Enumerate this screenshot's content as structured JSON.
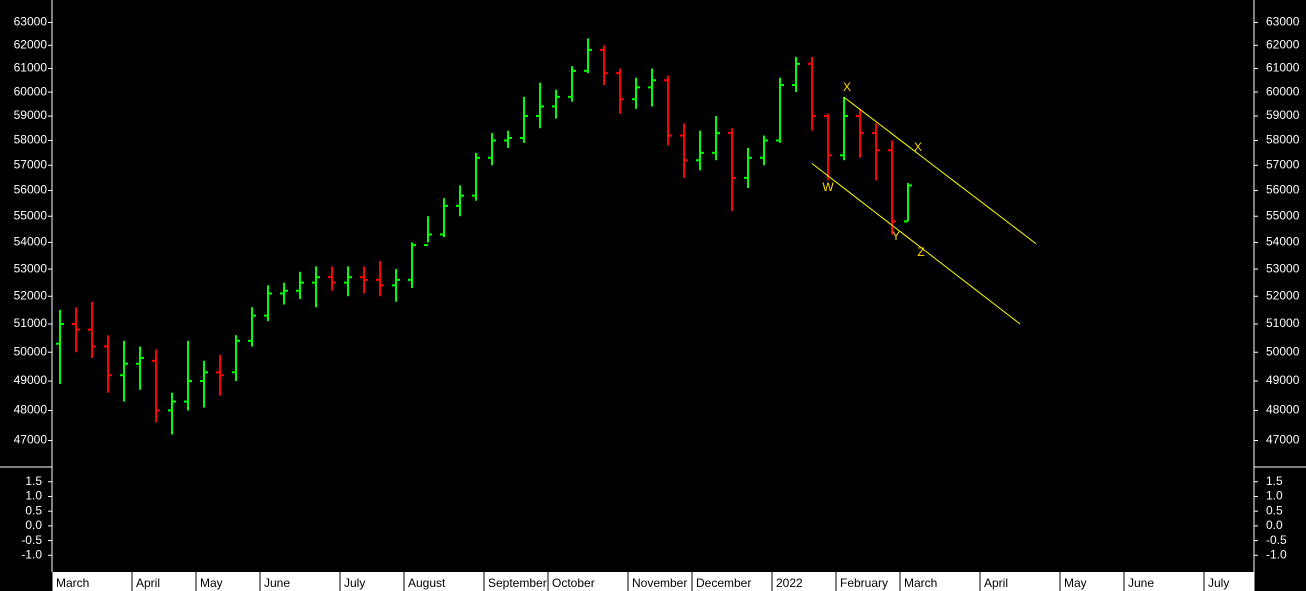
{
  "chart_data": {
    "type": "ohlc",
    "log": true,
    "up_color": "#00ff00",
    "down_color": "#ff0000",
    "categories": [
      "March",
      null,
      null,
      null,
      null,
      "April",
      null,
      null,
      null,
      "May",
      null,
      null,
      null,
      "June",
      null,
      null,
      null,
      null,
      "July",
      null,
      null,
      null,
      "August",
      null,
      null,
      null,
      null,
      "September",
      null,
      null,
      null,
      "October",
      null,
      null,
      null,
      null,
      "November",
      null,
      null,
      null,
      "December",
      null,
      null,
      null,
      null,
      "2022",
      null,
      null,
      null,
      "February",
      null,
      null,
      null,
      "March",
      null,
      null,
      null,
      null,
      "April",
      null,
      null,
      null,
      null,
      "May",
      null,
      null,
      null,
      "June",
      null,
      null,
      null,
      null,
      "July",
      null,
      null
    ],
    "open": [
      50300,
      51000,
      50800,
      50200,
      49200,
      49600,
      49700,
      48000,
      48300,
      49000,
      49300,
      49300,
      50400,
      51300,
      52100,
      52200,
      52500,
      52700,
      52500,
      52700,
      52600,
      52400,
      52600,
      53900,
      54300,
      55400,
      55800,
      57300,
      58000,
      58100,
      59000,
      59400,
      59800,
      60900,
      61800,
      60800,
      59700,
      60200,
      60500,
      58200,
      57200,
      57500,
      58300,
      56500,
      57300,
      58000,
      60300,
      61200,
      59000,
      57400,
      59000,
      58300,
      57600,
      54800,
      null,
      null,
      null,
      null,
      null,
      null,
      null,
      null,
      null,
      null,
      null,
      null,
      null,
      null,
      null,
      null,
      null,
      null,
      null,
      null,
      null
    ],
    "high": [
      51500,
      51600,
      51800,
      50600,
      50400,
      50200,
      50100,
      48600,
      50400,
      49700,
      49900,
      50600,
      51600,
      52400,
      52500,
      52900,
      53100,
      53100,
      53100,
      53100,
      53300,
      53000,
      54000,
      55000,
      55700,
      56200,
      57500,
      58300,
      58400,
      59800,
      60400,
      60100,
      61100,
      62300,
      62000,
      61000,
      60600,
      61000,
      60700,
      58700,
      58400,
      59000,
      58500,
      57700,
      58200,
      60600,
      61500,
      61500,
      59100,
      59800,
      59300,
      58700,
      58000,
      56300,
      null,
      null,
      null,
      null,
      null,
      null,
      null,
      null,
      null,
      null,
      null,
      null,
      null,
      null,
      null,
      null,
      null,
      null,
      null,
      null,
      null
    ],
    "low": [
      48900,
      50000,
      49800,
      48600,
      48300,
      48700,
      47600,
      47200,
      48000,
      48100,
      48500,
      49000,
      50200,
      51100,
      51700,
      51900,
      51600,
      52200,
      52000,
      52100,
      52000,
      51800,
      52300,
      54000,
      54200,
      55000,
      55600,
      57000,
      57700,
      57900,
      58500,
      58900,
      59600,
      60800,
      60300,
      59100,
      59300,
      59400,
      57800,
      56500,
      56800,
      57200,
      55200,
      56100,
      57000,
      57900,
      60000,
      58400,
      56400,
      57200,
      57300,
      56400,
      54300,
      54800,
      null,
      null,
      null,
      null,
      null,
      null,
      null,
      null,
      null,
      null,
      null,
      null,
      null,
      null,
      null,
      null,
      null,
      null,
      null,
      null,
      null
    ],
    "close": [
      51000,
      50800,
      50200,
      49200,
      49600,
      49800,
      48000,
      48300,
      49000,
      49300,
      49200,
      50400,
      51300,
      52100,
      52200,
      52500,
      52700,
      52500,
      52700,
      52600,
      52400,
      52600,
      53900,
      54300,
      55400,
      55800,
      57300,
      58000,
      58100,
      59000,
      59400,
      59800,
      60900,
      61800,
      60800,
      59700,
      60200,
      60500,
      58200,
      57200,
      57500,
      58300,
      56500,
      57300,
      58000,
      60300,
      61200,
      59000,
      57400,
      59000,
      58300,
      57600,
      54800,
      56200,
      null,
      null,
      null,
      null,
      null,
      null,
      null,
      null,
      null,
      null,
      null,
      null,
      null,
      null,
      null,
      null,
      null,
      null,
      null,
      null,
      null
    ],
    "ylim": [
      46200,
      64000
    ],
    "yticks": [
      47000,
      48000,
      49000,
      50000,
      51000,
      52000,
      53000,
      54000,
      55000,
      56000,
      57000,
      58000,
      59000,
      60000,
      61000,
      62000,
      63000
    ],
    "trendlines": [
      {
        "color": "#ffff00",
        "values": [
          null,
          null,
          null,
          null,
          null,
          null,
          null,
          null,
          null,
          null,
          null,
          null,
          null,
          null,
          null,
          null,
          null,
          null,
          null,
          null,
          null,
          null,
          null,
          null,
          null,
          null,
          null,
          null,
          null,
          null,
          null,
          null,
          null,
          null,
          null,
          null,
          null,
          null,
          null,
          null,
          null,
          null,
          null,
          null,
          null,
          null,
          null,
          null,
          null,
          59784,
          59275,
          58770,
          58270,
          57773,
          57281,
          56793,
          56309,
          55830,
          55354,
          54883,
          54415,
          53950,
          null,
          null,
          null,
          null,
          null,
          null,
          null,
          null,
          null,
          null,
          null,
          null,
          null
        ]
      },
      {
        "color": "#ffff00",
        "values": [
          null,
          null,
          null,
          null,
          null,
          null,
          null,
          null,
          null,
          null,
          null,
          null,
          null,
          null,
          null,
          null,
          null,
          null,
          null,
          null,
          null,
          null,
          null,
          null,
          null,
          null,
          null,
          null,
          null,
          null,
          null,
          null,
          null,
          null,
          null,
          null,
          null,
          null,
          null,
          null,
          null,
          null,
          null,
          null,
          null,
          null,
          null,
          57070,
          56578,
          56091,
          55608,
          55129,
          54654,
          54184,
          53717,
          53254,
          52796,
          52341,
          51890,
          51443,
          51000,
          null,
          null,
          null,
          null,
          null,
          null,
          null,
          null,
          null,
          null,
          null,
          null,
          null,
          null
        ]
      }
    ],
    "annotations": [
      "W",
      "X",
      "Y",
      "Z",
      "X"
    ],
    "indicator": {
      "ylim": [
        -1.5,
        1.9
      ],
      "yticks": [
        {
          "value": 1.5,
          "label": "1.5"
        },
        {
          "value": 1,
          "label": "1.0"
        },
        {
          "value": 0.5,
          "label": "0.5"
        },
        {
          "value": 0,
          "label": "0.0"
        },
        {
          "value": -0.5,
          "label": "-0.5"
        },
        {
          "value": -1,
          "label": "-1.0"
        }
      ]
    }
  }
}
